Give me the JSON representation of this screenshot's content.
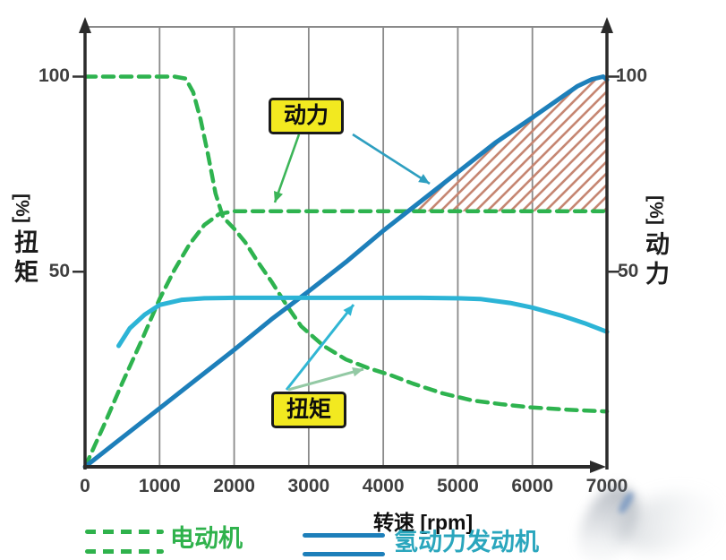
{
  "axes": {
    "x": {
      "title": "转速 [rpm]",
      "tick_labels": [
        "0",
        "1000",
        "2000",
        "3000",
        "4000",
        "5000",
        "6000",
        "7000"
      ]
    },
    "left": {
      "unit": "[%]",
      "chars": [
        "扭",
        "矩"
      ],
      "tick_labels": [
        "100",
        "50"
      ]
    },
    "right": {
      "unit": "[%]",
      "chars": [
        "动",
        "力"
      ],
      "tick_labels": [
        "100",
        "50"
      ]
    }
  },
  "annotations": {
    "power_box_label": "动力",
    "torque_box_label": "扭矩"
  },
  "legend": [
    {
      "label": "电动机",
      "style": "dashed",
      "color": "#2fb24c"
    },
    {
      "label": "氢动力发动机",
      "style": "solid",
      "color": "#2aa6bd"
    }
  ],
  "colors": {
    "em_green": "#2eb34f",
    "h2_power_blue": "#1d7fba",
    "h2_torque_cyan": "#2cb4d6",
    "hatch_salmon": "#c68672",
    "grid_gray": "#8a8a8a",
    "axis_black": "#2b2b2b",
    "callout_yellow": "#f2e920",
    "arrow_green": "#3cb558",
    "arrow_teal": "#2e9fc0",
    "arrow_cyan": "#30b6d4",
    "arrow_pale_green": "#93c9a4"
  },
  "chart_data": {
    "type": "line",
    "title": "",
    "xlabel": "转速 [rpm]",
    "ylabel_left": "扭矩 [%]",
    "ylabel_right": "动力 [%]",
    "xlim": [
      0,
      7000
    ],
    "ylim": [
      0,
      112
    ],
    "x_ticks": [
      0,
      1000,
      2000,
      3000,
      4000,
      5000,
      6000,
      7000
    ],
    "y_ticks": [
      100,
      50
    ],
    "grid": "vertical-only",
    "legend_position": "bottom",
    "series": [
      {
        "name": "电动机 扭矩 [%]",
        "style": "dashed",
        "color": "#2eb34f",
        "points": [
          [
            0,
            100
          ],
          [
            400,
            100
          ],
          [
            800,
            100
          ],
          [
            1200,
            100
          ],
          [
            1350,
            99.5
          ],
          [
            1450,
            96
          ],
          [
            1550,
            89
          ],
          [
            1650,
            80
          ],
          [
            1750,
            70
          ],
          [
            1850,
            64
          ],
          [
            2000,
            61
          ],
          [
            2150,
            57.5
          ],
          [
            2300,
            53
          ],
          [
            2500,
            47.5
          ],
          [
            2700,
            41.5
          ],
          [
            2900,
            36
          ],
          [
            3200,
            31
          ],
          [
            3500,
            27.5
          ],
          [
            3800,
            25.3
          ],
          [
            4100,
            23.5
          ],
          [
            4400,
            21.3
          ],
          [
            4800,
            18.8
          ],
          [
            5200,
            17
          ],
          [
            5600,
            16
          ],
          [
            6000,
            15.2
          ],
          [
            6500,
            14.6
          ],
          [
            7000,
            14.2
          ]
        ]
      },
      {
        "name": "电动机 动力 [%]",
        "style": "dashed",
        "color": "#2eb34f",
        "points": [
          [
            0,
            0
          ],
          [
            250,
            10.5
          ],
          [
            500,
            21.5
          ],
          [
            750,
            32
          ],
          [
            1000,
            43
          ],
          [
            1200,
            50.5
          ],
          [
            1400,
            57
          ],
          [
            1600,
            62
          ],
          [
            1800,
            64.8
          ],
          [
            2000,
            65.5
          ],
          [
            3000,
            65.5
          ],
          [
            4000,
            65.5
          ],
          [
            5000,
            65.5
          ],
          [
            6000,
            65.5
          ],
          [
            7000,
            65.5
          ]
        ]
      },
      {
        "name": "氢动力发动机 动力 [%]",
        "style": "solid",
        "color": "#1d7fba",
        "points": [
          [
            0,
            0
          ],
          [
            500,
            7.5
          ],
          [
            1000,
            15
          ],
          [
            1500,
            22.5
          ],
          [
            2000,
            30
          ],
          [
            2500,
            37.8
          ],
          [
            3000,
            45
          ],
          [
            3500,
            52.5
          ],
          [
            4000,
            60.5
          ],
          [
            4500,
            68
          ],
          [
            5000,
            75.5
          ],
          [
            5500,
            83
          ],
          [
            6000,
            89.5
          ],
          [
            6300,
            93.5
          ],
          [
            6600,
            97.5
          ],
          [
            6800,
            99.3
          ],
          [
            6950,
            100
          ],
          [
            7000,
            99.2
          ]
        ]
      },
      {
        "name": "氢动力发动机 扭矩 [%]",
        "style": "solid",
        "color": "#2cb4d6",
        "points": [
          [
            450,
            31
          ],
          [
            600,
            35.5
          ],
          [
            800,
            39
          ],
          [
            1000,
            41.5
          ],
          [
            1300,
            42.8
          ],
          [
            1600,
            43.2
          ],
          [
            2000,
            43.3
          ],
          [
            2500,
            43.3
          ],
          [
            3000,
            43.3
          ],
          [
            3500,
            43.3
          ],
          [
            4000,
            43.3
          ],
          [
            4500,
            43.3
          ],
          [
            5000,
            43.2
          ],
          [
            5300,
            43
          ],
          [
            5700,
            42
          ],
          [
            6000,
            40.8
          ],
          [
            6400,
            38.7
          ],
          [
            6700,
            36.8
          ],
          [
            7000,
            34.6
          ]
        ]
      }
    ],
    "hatch_region": {
      "description": "area between 氢动力发动机 动力 curve and 电动机 动力 flat line",
      "above_level_pct": 65.5,
      "from_rpm": 4333,
      "to_rpm": 7000,
      "color": "#c68672",
      "pattern": "diagonal-lines"
    }
  }
}
